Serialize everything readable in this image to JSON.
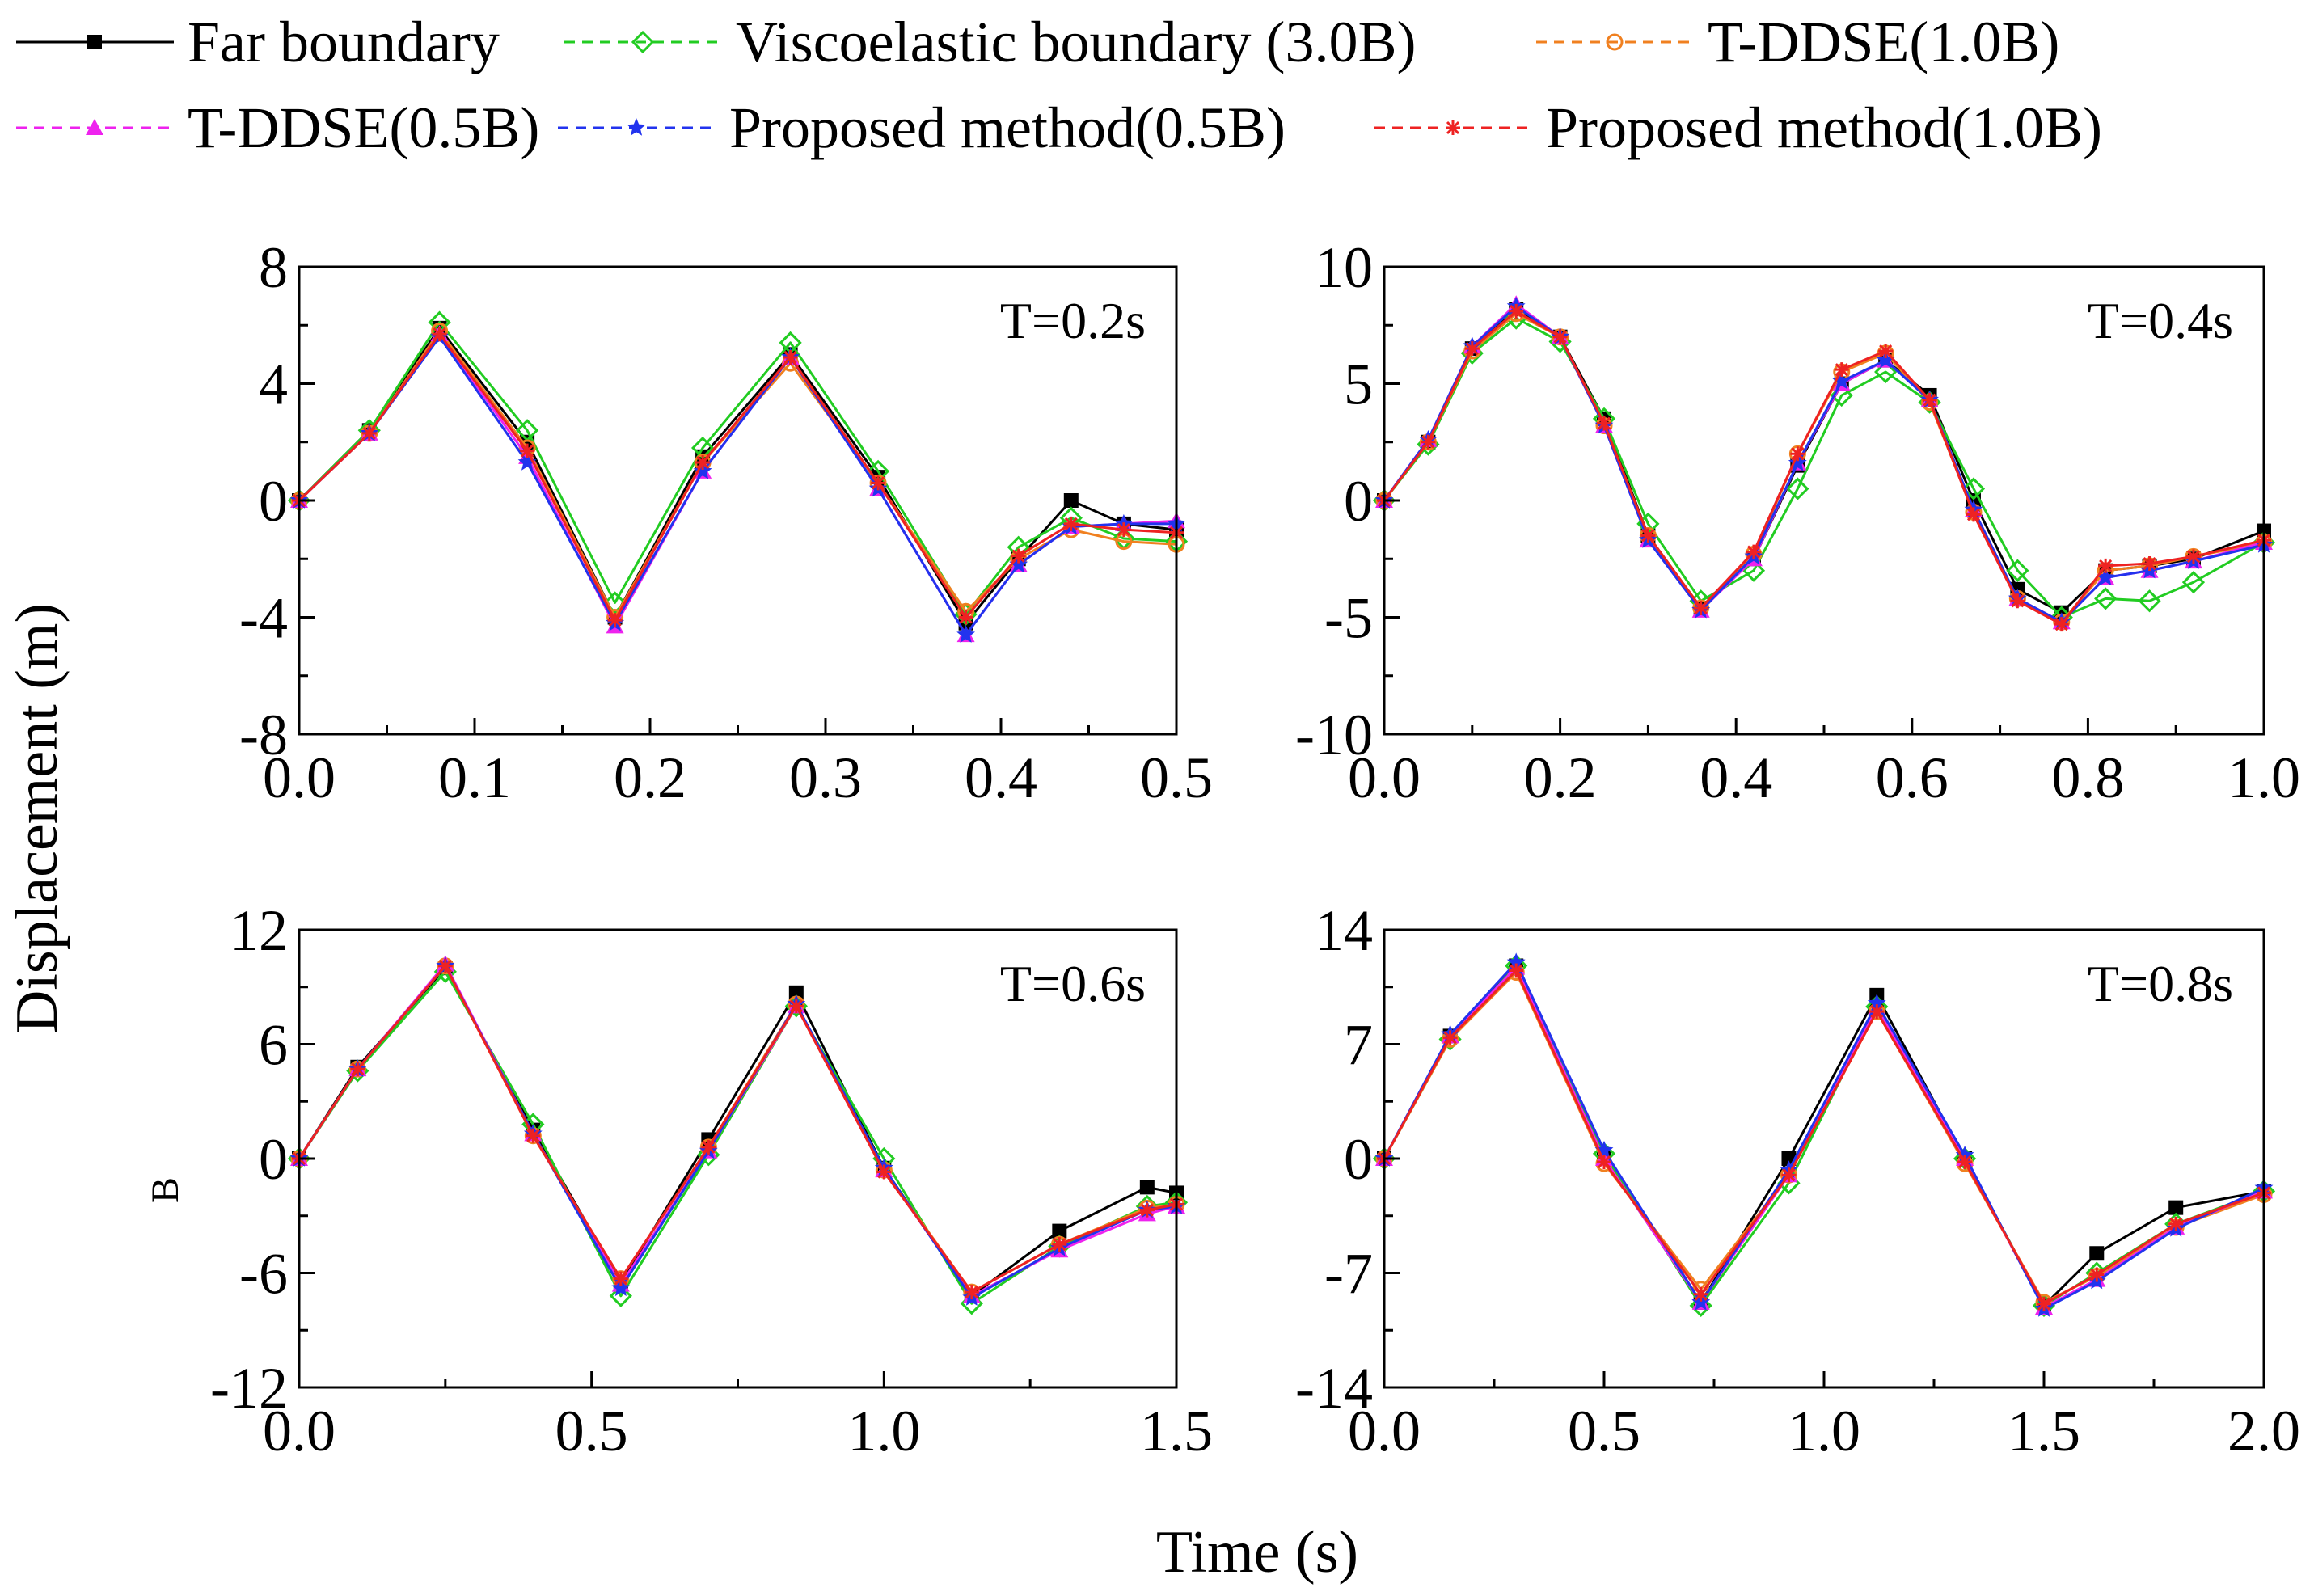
{
  "figure": {
    "xlabel": "Time (s)",
    "ylabel": "Displacement (m)",
    "stray_label": "B"
  },
  "legend": [
    {
      "name": "Far boundary",
      "color": "#000000",
      "marker": "square",
      "dash": "solid"
    },
    {
      "name": "Viscoelastic boundary (3.0B)",
      "color": "#22cc22",
      "marker": "diamond",
      "dash": "dashed"
    },
    {
      "name": "T-DDSE(1.0B)",
      "color": "#f08020",
      "marker": "circle",
      "dash": "dashed"
    },
    {
      "name": "T-DDSE(0.5B)",
      "color": "#ee22ee",
      "marker": "triangle",
      "dash": "dashed"
    },
    {
      "name": "Proposed method(0.5B)",
      "color": "#2233ee",
      "marker": "star",
      "dash": "dashed"
    },
    {
      "name": "Proposed method(1.0B)",
      "color": "#ee2222",
      "marker": "asterisk",
      "dash": "dashed"
    }
  ],
  "chart_data": [
    {
      "type": "line",
      "panel_label": "T=0.2s",
      "xlim": [
        0.0,
        0.5
      ],
      "ylim": [
        -8,
        8
      ],
      "xticks": [
        "0.0",
        "0.1",
        "0.2",
        "0.3",
        "0.4",
        "0.5"
      ],
      "yticks": [
        "8",
        "4",
        "0",
        "-4",
        "-8"
      ],
      "xtick_values": [
        0.0,
        0.1,
        0.2,
        0.3,
        0.4,
        0.5
      ],
      "ytick_values": [
        8,
        4,
        0,
        -4,
        -8
      ],
      "marker_step": 0.01,
      "series": [
        {
          "name": "Far boundary",
          "x": [
            0,
            0.04,
            0.08,
            0.13,
            0.18,
            0.23,
            0.28,
            0.33,
            0.38,
            0.41,
            0.44,
            0.47,
            0.5
          ],
          "y": [
            0,
            2.4,
            5.9,
            2.0,
            -4.0,
            1.5,
            5.0,
            0.8,
            -4.2,
            -2.0,
            0.0,
            -0.8,
            -1.0
          ]
        },
        {
          "name": "Viscoelastic boundary (3.0B)",
          "x": [
            0,
            0.04,
            0.08,
            0.13,
            0.18,
            0.23,
            0.28,
            0.33,
            0.38,
            0.41,
            0.44,
            0.47,
            0.5
          ],
          "y": [
            0,
            2.4,
            6.1,
            2.4,
            -3.5,
            1.8,
            5.4,
            1.0,
            -3.9,
            -1.6,
            -0.6,
            -1.3,
            -1.4
          ]
        },
        {
          "name": "T-DDSE(1.0B)",
          "x": [
            0,
            0.04,
            0.08,
            0.13,
            0.18,
            0.23,
            0.28,
            0.33,
            0.38,
            0.41,
            0.44,
            0.47,
            0.5
          ],
          "y": [
            0,
            2.3,
            5.8,
            1.8,
            -4.0,
            1.3,
            4.7,
            0.6,
            -3.8,
            -2.0,
            -1.0,
            -1.4,
            -1.5
          ]
        },
        {
          "name": "T-DDSE(0.5B)",
          "x": [
            0,
            0.04,
            0.08,
            0.13,
            0.18,
            0.23,
            0.28,
            0.33,
            0.38,
            0.41,
            0.44,
            0.47,
            0.5
          ],
          "y": [
            0,
            2.3,
            5.7,
            1.5,
            -4.3,
            1.0,
            4.9,
            0.4,
            -4.6,
            -2.2,
            -0.9,
            -0.8,
            -0.7
          ]
        },
        {
          "name": "Proposed method(0.5B)",
          "x": [
            0,
            0.04,
            0.08,
            0.13,
            0.18,
            0.23,
            0.28,
            0.33,
            0.38,
            0.41,
            0.44,
            0.47,
            0.5
          ],
          "y": [
            0,
            2.3,
            5.6,
            1.3,
            -4.2,
            1.0,
            4.9,
            0.4,
            -4.6,
            -2.2,
            -0.9,
            -0.8,
            -0.8
          ]
        },
        {
          "name": "Proposed method(1.0B)",
          "x": [
            0,
            0.04,
            0.08,
            0.13,
            0.18,
            0.23,
            0.28,
            0.33,
            0.38,
            0.41,
            0.44,
            0.47,
            0.5
          ],
          "y": [
            0,
            2.3,
            5.7,
            1.7,
            -4.1,
            1.3,
            4.9,
            0.6,
            -4.0,
            -1.9,
            -0.8,
            -1.0,
            -1.1
          ]
        }
      ]
    },
    {
      "type": "line",
      "panel_label": "T=0.4s",
      "xlim": [
        0.0,
        1.0
      ],
      "ylim": [
        -10,
        10
      ],
      "xticks": [
        "0.0",
        "0.2",
        "0.4",
        "0.6",
        "0.8",
        "1.0"
      ],
      "yticks": [
        "10",
        "5",
        "0",
        "-5",
        "-10"
      ],
      "xtick_values": [
        0.0,
        0.2,
        0.4,
        0.6,
        0.8,
        1.0
      ],
      "ytick_values": [
        10,
        5,
        0,
        -5,
        -10
      ],
      "marker_step": 0.03,
      "series": [
        {
          "name": "Far boundary",
          "x": [
            0,
            0.05,
            0.1,
            0.15,
            0.2,
            0.25,
            0.3,
            0.36,
            0.42,
            0.47,
            0.52,
            0.57,
            0.62,
            0.67,
            0.72,
            0.77,
            0.82,
            0.87,
            0.92,
            1.0
          ],
          "y": [
            0,
            2.5,
            6.5,
            8.2,
            7.0,
            3.5,
            -1.5,
            -4.6,
            -2.5,
            1.5,
            5.0,
            6.0,
            4.5,
            0.0,
            -3.8,
            -4.8,
            -3.0,
            -2.8,
            -2.5,
            -1.3
          ]
        },
        {
          "name": "Viscoelastic boundary (3.0B)",
          "x": [
            0,
            0.05,
            0.1,
            0.15,
            0.2,
            0.25,
            0.3,
            0.36,
            0.42,
            0.47,
            0.52,
            0.57,
            0.62,
            0.67,
            0.72,
            0.77,
            0.82,
            0.87,
            0.92,
            1.0
          ],
          "y": [
            0,
            2.4,
            6.3,
            7.8,
            6.8,
            3.5,
            -1.0,
            -4.3,
            -3.0,
            0.5,
            4.5,
            5.5,
            4.2,
            0.5,
            -3.0,
            -5.0,
            -4.2,
            -4.3,
            -3.5,
            -1.8
          ]
        },
        {
          "name": "T-DDSE(1.0B)",
          "x": [
            0,
            0.05,
            0.1,
            0.15,
            0.2,
            0.25,
            0.3,
            0.36,
            0.42,
            0.47,
            0.52,
            0.57,
            0.62,
            0.67,
            0.72,
            0.77,
            0.82,
            0.87,
            0.92,
            1.0
          ],
          "y": [
            0,
            2.5,
            6.4,
            8.0,
            7.0,
            3.2,
            -1.5,
            -4.6,
            -2.3,
            2.0,
            5.5,
            6.3,
            4.2,
            -0.5,
            -4.2,
            -5.2,
            -3.0,
            -2.8,
            -2.4,
            -1.8
          ]
        },
        {
          "name": "T-DDSE(0.5B)",
          "x": [
            0,
            0.05,
            0.1,
            0.15,
            0.2,
            0.25,
            0.3,
            0.36,
            0.42,
            0.47,
            0.52,
            0.57,
            0.62,
            0.67,
            0.72,
            0.77,
            0.82,
            0.87,
            0.92,
            1.0
          ],
          "y": [
            0,
            2.6,
            6.6,
            8.4,
            7.0,
            3.2,
            -1.7,
            -4.7,
            -2.5,
            1.6,
            5.0,
            6.0,
            4.3,
            -0.4,
            -4.2,
            -5.2,
            -3.3,
            -3.0,
            -2.6,
            -1.8
          ]
        },
        {
          "name": "Proposed method(0.5B)",
          "x": [
            0,
            0.05,
            0.1,
            0.15,
            0.2,
            0.25,
            0.3,
            0.36,
            0.42,
            0.47,
            0.52,
            0.57,
            0.62,
            0.67,
            0.72,
            0.77,
            0.82,
            0.87,
            0.92,
            1.0
          ],
          "y": [
            0,
            2.6,
            6.6,
            8.3,
            7.0,
            3.2,
            -1.7,
            -4.7,
            -2.4,
            1.6,
            5.1,
            6.0,
            4.3,
            -0.4,
            -4.2,
            -5.2,
            -3.3,
            -3.0,
            -2.6,
            -1.9
          ]
        },
        {
          "name": "Proposed method(1.0B)",
          "x": [
            0,
            0.05,
            0.1,
            0.15,
            0.2,
            0.25,
            0.3,
            0.36,
            0.42,
            0.47,
            0.52,
            0.57,
            0.62,
            0.67,
            0.72,
            0.77,
            0.82,
            0.87,
            0.92,
            1.0
          ],
          "y": [
            0,
            2.5,
            6.5,
            8.1,
            7.0,
            3.3,
            -1.5,
            -4.6,
            -2.2,
            2.0,
            5.6,
            6.4,
            4.3,
            -0.6,
            -4.3,
            -5.3,
            -2.8,
            -2.7,
            -2.4,
            -1.7
          ]
        }
      ]
    },
    {
      "type": "line",
      "panel_label": "T=0.6s",
      "xlim": [
        0.0,
        1.5
      ],
      "ylim": [
        -12,
        12
      ],
      "xticks": [
        "0.0",
        "0.5",
        "1.0",
        "1.5"
      ],
      "yticks": [
        "12",
        "6",
        "0",
        "-6",
        "-12"
      ],
      "xtick_values": [
        0.0,
        0.5,
        1.0,
        1.5
      ],
      "ytick_values": [
        12,
        6,
        0,
        -6,
        -12
      ],
      "marker_step": 0.05,
      "series": [
        {
          "name": "Far boundary",
          "x": [
            0,
            0.1,
            0.25,
            0.4,
            0.55,
            0.7,
            0.85,
            1.0,
            1.15,
            1.3,
            1.45,
            1.5
          ],
          "y": [
            0,
            4.8,
            10.0,
            1.5,
            -6.5,
            1.0,
            8.7,
            -0.5,
            -7.2,
            -3.8,
            -1.5,
            -1.8
          ]
        },
        {
          "name": "Viscoelastic boundary (3.0B)",
          "x": [
            0,
            0.1,
            0.25,
            0.4,
            0.55,
            0.7,
            0.85,
            1.0,
            1.15,
            1.3,
            1.45,
            1.5
          ],
          "y": [
            0,
            4.6,
            9.8,
            1.8,
            -7.2,
            0.2,
            8.0,
            0.0,
            -7.6,
            -4.6,
            -2.5,
            -2.3
          ]
        },
        {
          "name": "T-DDSE(1.0B)",
          "x": [
            0,
            0.1,
            0.25,
            0.4,
            0.55,
            0.7,
            0.85,
            1.0,
            1.15,
            1.3,
            1.45,
            1.5
          ],
          "y": [
            0,
            4.7,
            10.1,
            1.2,
            -6.3,
            0.6,
            8.1,
            -0.6,
            -7.0,
            -4.5,
            -2.6,
            -2.4
          ]
        },
        {
          "name": "T-DDSE(0.5B)",
          "x": [
            0,
            0.1,
            0.25,
            0.4,
            0.55,
            0.7,
            0.85,
            1.0,
            1.15,
            1.3,
            1.45,
            1.5
          ],
          "y": [
            0,
            4.7,
            10.2,
            1.3,
            -6.6,
            0.4,
            8.0,
            -0.6,
            -7.2,
            -4.8,
            -2.9,
            -2.5
          ]
        },
        {
          "name": "Proposed method(0.5B)",
          "x": [
            0,
            0.1,
            0.25,
            0.4,
            0.55,
            0.7,
            0.85,
            1.0,
            1.15,
            1.3,
            1.45,
            1.5
          ],
          "y": [
            0,
            4.7,
            10.1,
            1.3,
            -6.8,
            0.4,
            8.1,
            -0.5,
            -7.3,
            -4.7,
            -2.7,
            -2.5
          ]
        },
        {
          "name": "Proposed method(1.0B)",
          "x": [
            0,
            0.1,
            0.25,
            0.4,
            0.55,
            0.7,
            0.85,
            1.0,
            1.15,
            1.3,
            1.45,
            1.5
          ],
          "y": [
            0,
            4.7,
            10.1,
            1.2,
            -6.3,
            0.6,
            8.0,
            -0.7,
            -7.0,
            -4.5,
            -2.7,
            -2.4
          ]
        }
      ]
    },
    {
      "type": "line",
      "panel_label": "T=0.8s",
      "xlim": [
        0.0,
        2.0
      ],
      "ylim": [
        -14,
        14
      ],
      "xticks": [
        "0.0",
        "0.5",
        "1.0",
        "1.5",
        "2.0"
      ],
      "yticks": [
        "14",
        "7",
        "0",
        "-7",
        "-14"
      ],
      "xtick_values": [
        0.0,
        0.5,
        1.0,
        1.5,
        2.0
      ],
      "ytick_values": [
        14,
        7,
        0,
        -7,
        -14
      ],
      "marker_step": 0.06,
      "series": [
        {
          "name": "Far boundary",
          "x": [
            0,
            0.15,
            0.3,
            0.5,
            0.72,
            0.92,
            1.12,
            1.32,
            1.5,
            1.62,
            1.8,
            2.0
          ],
          "y": [
            0,
            7.5,
            11.8,
            0.0,
            -8.8,
            0.0,
            10.0,
            0.0,
            -9.0,
            -5.8,
            -3.0,
            -2.0
          ]
        },
        {
          "name": "Viscoelastic boundary (3.0B)",
          "x": [
            0,
            0.15,
            0.3,
            0.5,
            0.72,
            0.92,
            1.12,
            1.32,
            1.5,
            1.62,
            1.8,
            2.0
          ],
          "y": [
            0,
            7.3,
            11.8,
            0.3,
            -9.0,
            -1.5,
            9.3,
            0.0,
            -9.0,
            -7.0,
            -4.0,
            -2.0
          ]
        },
        {
          "name": "T-DDSE(1.0B)",
          "x": [
            0,
            0.15,
            0.3,
            0.5,
            0.72,
            0.92,
            1.12,
            1.32,
            1.5,
            1.62,
            1.8,
            2.0
          ],
          "y": [
            0,
            7.3,
            11.4,
            -0.3,
            -8.0,
            -1.0,
            9.0,
            -0.3,
            -8.8,
            -7.2,
            -4.2,
            -2.2
          ]
        },
        {
          "name": "T-DDSE(0.5B)",
          "x": [
            0,
            0.15,
            0.3,
            0.5,
            0.72,
            0.92,
            1.12,
            1.32,
            1.5,
            1.62,
            1.8,
            2.0
          ],
          "y": [
            0,
            7.5,
            11.7,
            0.0,
            -8.8,
            -1.0,
            9.2,
            0.0,
            -9.1,
            -7.4,
            -4.2,
            -2.0
          ]
        },
        {
          "name": "Proposed method(0.5B)",
          "x": [
            0,
            0.15,
            0.3,
            0.5,
            0.72,
            0.92,
            1.12,
            1.32,
            1.5,
            1.62,
            1.8,
            2.0
          ],
          "y": [
            0,
            7.6,
            12.0,
            0.5,
            -8.8,
            -0.7,
            9.5,
            0.2,
            -9.2,
            -7.5,
            -4.3,
            -1.8
          ]
        },
        {
          "name": "Proposed method(1.0B)",
          "x": [
            0,
            0.15,
            0.3,
            0.5,
            0.72,
            0.92,
            1.12,
            1.32,
            1.5,
            1.62,
            1.8,
            2.0
          ],
          "y": [
            0,
            7.4,
            11.5,
            -0.2,
            -8.3,
            -1.0,
            9.0,
            -0.2,
            -8.9,
            -7.1,
            -4.0,
            -2.1
          ]
        }
      ]
    }
  ]
}
